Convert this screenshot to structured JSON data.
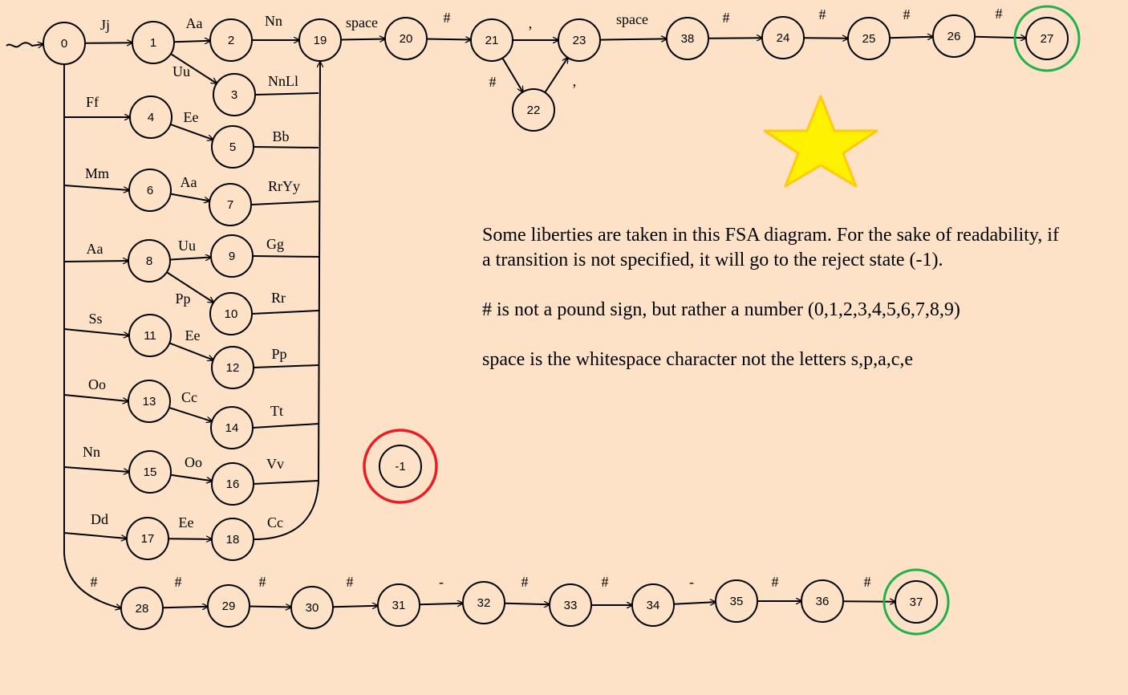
{
  "states": [
    {
      "id": "0"
    },
    {
      "id": "1"
    },
    {
      "id": "2"
    },
    {
      "id": "3"
    },
    {
      "id": "4"
    },
    {
      "id": "5"
    },
    {
      "id": "6"
    },
    {
      "id": "7"
    },
    {
      "id": "8"
    },
    {
      "id": "9"
    },
    {
      "id": "10"
    },
    {
      "id": "11"
    },
    {
      "id": "12"
    },
    {
      "id": "13"
    },
    {
      "id": "14"
    },
    {
      "id": "15"
    },
    {
      "id": "16"
    },
    {
      "id": "17"
    },
    {
      "id": "18"
    },
    {
      "id": "19"
    },
    {
      "id": "20"
    },
    {
      "id": "21"
    },
    {
      "id": "22"
    },
    {
      "id": "23"
    },
    {
      "id": "38"
    },
    {
      "id": "24"
    },
    {
      "id": "25"
    },
    {
      "id": "26"
    },
    {
      "id": "27",
      "accept": true
    },
    {
      "id": "28"
    },
    {
      "id": "29"
    },
    {
      "id": "30"
    },
    {
      "id": "31"
    },
    {
      "id": "32"
    },
    {
      "id": "33"
    },
    {
      "id": "34"
    },
    {
      "id": "35"
    },
    {
      "id": "36"
    },
    {
      "id": "37",
      "accept": true
    },
    {
      "id": "-1",
      "reject": true
    }
  ],
  "edge_labels": {
    "e0_1": "Jj",
    "e1_2": "Aa",
    "e1_3": "Uu",
    "e2_19": "Nn",
    "e3_19": "NnLl",
    "e19_20": "space",
    "e20_21": "#",
    "e21_23": ",",
    "e21_22": "#",
    "e22_23": ",",
    "e23_38": "space",
    "e38_24": "#",
    "e24_25": "#",
    "e25_26": "#",
    "e26_27": "#",
    "e0_4": "Ff",
    "e4_5": "Ee",
    "e5_19": "Bb",
    "e0_6": "Mm",
    "e6_7": "Aa",
    "e7_19": "RrYy",
    "e0_8": "Aa",
    "e8_9": "Uu",
    "e8_10": "Pp",
    "e9_19": "Gg",
    "e10_19": "Rr",
    "e0_11": "Ss",
    "e11_12": "Ee",
    "e12_19": "Pp",
    "e0_13": "Oo",
    "e13_14": "Cc",
    "e14_19": "Tt",
    "e0_15": "Nn",
    "e15_16": "Oo",
    "e16_19": "Vv",
    "e0_17": "Dd",
    "e17_18": "Ee",
    "e18_19": "Cc",
    "e0_28": "#",
    "e28_29": "#",
    "e29_30": "#",
    "e30_31": "#",
    "e31_32": "-",
    "e32_33": "#",
    "e33_34": "#",
    "e34_35": "-",
    "e35_36": "#",
    "e36_37": "#"
  },
  "notes": {
    "note1": "Some liberties are taken in this FSA diagram. For the sake of readability, if a transition is not specified, it will go to the reject state (-1).",
    "note2": "# is not a pound sign, but rather a number (0,1,2,3,4,5,6,7,8,9)",
    "note3": "space is the whitespace character not the letters s,p,a,c,e"
  },
  "colors": {
    "background": "#fde2c7",
    "accept_ring": "#22b14c",
    "reject_ring": "#ed1c24",
    "star_fill": "#fff200",
    "star_stroke": "#ffc90e"
  },
  "decorations": {
    "star_icon": "star-icon"
  }
}
